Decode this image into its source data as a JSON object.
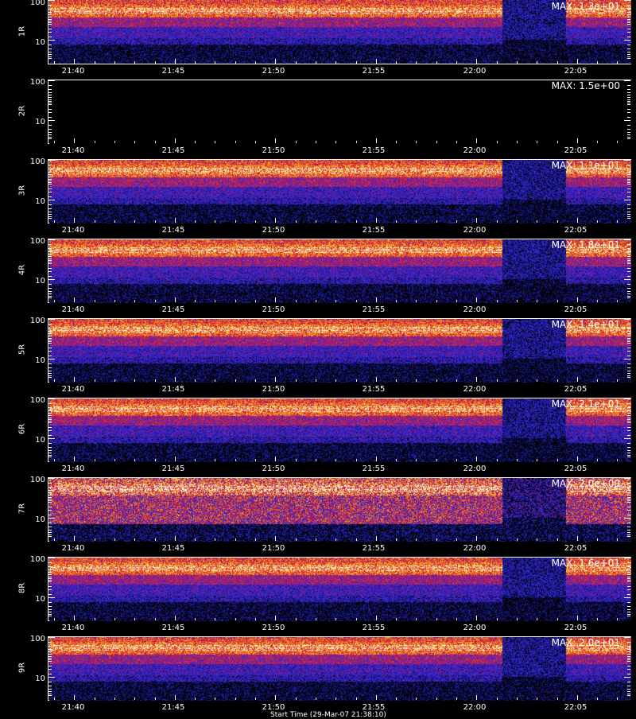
{
  "chart_data": {
    "type": "heatmap",
    "panels": [
      {
        "label": "1R",
        "max_text": "MAX: 1.3e+01"
      },
      {
        "label": "2R",
        "max_text": "MAX: 1.5e+00"
      },
      {
        "label": "3R",
        "max_text": "MAX: 1.1e+01"
      },
      {
        "label": "4R",
        "max_text": "MAX: 1.8e+01"
      },
      {
        "label": "5R",
        "max_text": "MAX: 1.4e+01"
      },
      {
        "label": "6R",
        "max_text": "MAX: 2.1e+01"
      },
      {
        "label": "7R",
        "max_text": "MAX: 2.0e+00"
      },
      {
        "label": "8R",
        "max_text": "MAX: 1.6e+01"
      },
      {
        "label": "9R",
        "max_text": "MAX: 2.0e+01"
      }
    ],
    "x_tick_labels": [
      "21:40",
      "21:45",
      "21:50",
      "21:55",
      "22:00",
      "22:05"
    ],
    "y_tick_labels": [
      "100",
      "10"
    ],
    "y_scale": "log",
    "colormap": [
      "#000000",
      "#1a1a9a",
      "#2a2ad8",
      "#8a1a9a",
      "#d81a2a",
      "#f07a1a",
      "#f8d84a",
      "#ffffff"
    ],
    "data_gap": {
      "start": "22:01:20",
      "end": "22:04:25"
    }
  },
  "footer": {
    "text": "Start Time (29-Mar-07 21:38:10)"
  }
}
